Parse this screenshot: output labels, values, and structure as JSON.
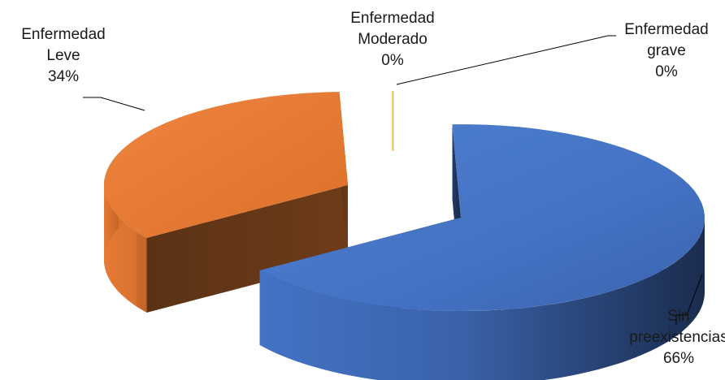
{
  "chart_data": {
    "type": "pie",
    "style": "3d-exploded",
    "title": "",
    "slices": [
      {
        "name": "Sin preexistencias",
        "value": 66,
        "label_lines": [
          "Sin",
          "preexistencias",
          "66%"
        ],
        "color": "#4472C4"
      },
      {
        "name": "Enfermedad Leve",
        "value": 34,
        "label_lines": [
          "Enfermedad",
          "Leve",
          "34%"
        ],
        "color": "#ED7D31"
      },
      {
        "name": "Enfermedad Moderado",
        "value": 0,
        "label_lines": [
          "Enfermedad",
          "Moderado",
          "0%"
        ],
        "color": "#A5A5A5"
      },
      {
        "name": "Enfermedad grave",
        "value": 0,
        "label_lines": [
          "Enfermedad",
          "grave",
          "0%"
        ],
        "color": "#FFC000"
      }
    ],
    "legend": "none"
  }
}
